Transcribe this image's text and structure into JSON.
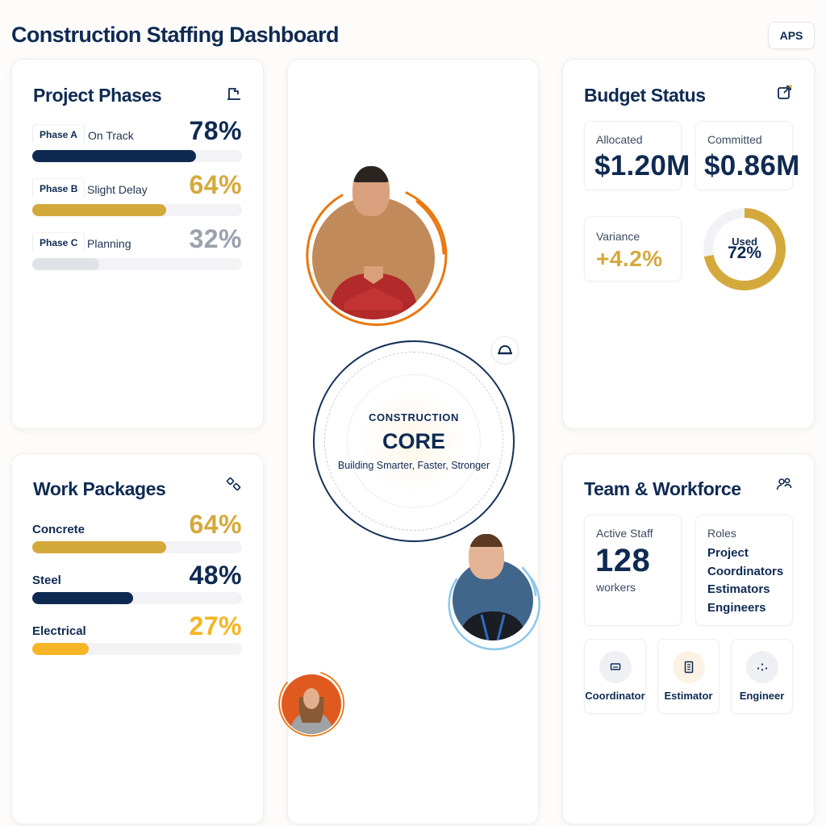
{
  "header": {
    "title": "Construction Staffing Dashboard",
    "user_button": "APS"
  },
  "colors": {
    "navy": "#0f2a52",
    "gold": "#d4a93c",
    "amber": "#f6b524",
    "gray": "#9aa1ad",
    "orange": "#e8780f",
    "sky": "#8cc7ea"
  },
  "project_phases": {
    "title": "Project Phases",
    "icon": "flag-icon",
    "items": [
      {
        "tag": "Phase A",
        "status": "On Track",
        "percent_label": "78%",
        "percent": 78,
        "color": "#0f2a52"
      },
      {
        "tag": "Phase B",
        "status": "Slight Delay",
        "percent_label": "64%",
        "percent": 64,
        "color": "#d4a93c"
      },
      {
        "tag": "Phase C",
        "status": "Planning",
        "percent_label": "32%",
        "percent": 32,
        "color": "#9aa1ad"
      }
    ]
  },
  "work_packages": {
    "title": "Work Packages",
    "icon": "tag-icon",
    "items": [
      {
        "label": "Concrete",
        "percent_label": "64%",
        "percent": 64,
        "color": "#d4a93c"
      },
      {
        "label": "Steel",
        "percent_label": "48%",
        "percent": 48,
        "color": "#0f2a52"
      },
      {
        "label": "Electrical",
        "percent_label": "27%",
        "percent": 27,
        "color": "#f6b524"
      }
    ]
  },
  "core": {
    "kicker": "CONSTRUCTION",
    "title": "CORE",
    "subtitle": "Building Smarter, Faster, Stronger",
    "badge_icon": "hard-hat-icon"
  },
  "budget": {
    "title": "Budget Status",
    "icon": "external-link-icon",
    "allocated_label": "Allocated",
    "allocated_value": "$1.20M",
    "committed_label": "Committed",
    "committed_value": "$0.86M",
    "variance_label": "Variance",
    "variance_value": "+4.2%",
    "used_label": "Used",
    "used_value": "72%",
    "used_percent": 72
  },
  "team": {
    "title": "Team & Workforce",
    "icon": "users-icon",
    "active_label": "Active Staff",
    "active_value": "128",
    "active_unit": "workers",
    "roles_label": "Roles",
    "roles": [
      "Project",
      "Coordinators",
      "Estimators",
      "Engineers"
    ],
    "role_cards": [
      {
        "name": "Coordinator",
        "icon": "monitor-icon"
      },
      {
        "name": "Estimator",
        "icon": "calculator-icon"
      },
      {
        "name": "Engineer",
        "icon": "gears-icon"
      }
    ]
  }
}
